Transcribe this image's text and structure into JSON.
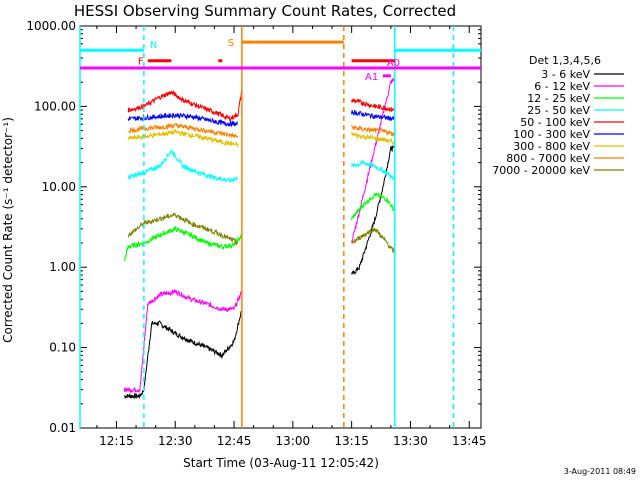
{
  "chart_data": {
    "type": "line",
    "title": "HESSI Observing Summary Count Rates, Corrected",
    "xlabel": "Start Time (03-Aug-11 12:05:42)",
    "ylabel": "Corrected Count Rate (s⁻¹ detector⁻¹)",
    "yscale": "log",
    "ylim": [
      0.01,
      1000
    ],
    "xlim_minutes": [
      "12:05:42",
      "13:48:00"
    ],
    "x_ticks": [
      "12:15",
      "12:30",
      "12:45",
      "13:00",
      "13:15",
      "13:30",
      "13:45"
    ],
    "y_ticks": [
      "1000.00",
      "100.00",
      "10.00",
      "1.00",
      "0.10",
      "0.01"
    ],
    "legend_title": "Det 1,3,4,5,6",
    "legend_position": "right",
    "series": [
      {
        "name": "3 - 6 keV",
        "color": "#000000",
        "segments": [
          {
            "x": [
              "12:17",
              "12:21",
              "12:22",
              "12:24",
              "12:26",
              "12:30",
              "12:34",
              "12:38",
              "12:42",
              "12:45",
              "12:47"
            ],
            "y": [
              0.025,
              0.025,
              0.03,
              0.2,
              0.2,
              0.15,
              0.12,
              0.1,
              0.08,
              0.12,
              0.3
            ]
          },
          {
            "x": [
              "13:15",
              "13:17",
              "13:19",
              "13:21",
              "13:23",
              "13:25",
              "13:26"
            ],
            "y": [
              0.8,
              1.0,
              2.0,
              4.0,
              10,
              30,
              30
            ]
          }
        ]
      },
      {
        "name": "6 - 12 keV",
        "color": "#ff00ff",
        "segments": [
          {
            "x": [
              "12:17",
              "12:21",
              "12:23",
              "12:26",
              "12:30",
              "12:34",
              "12:38",
              "12:42",
              "12:45",
              "12:47"
            ],
            "y": [
              0.03,
              0.03,
              0.35,
              0.45,
              0.5,
              0.4,
              0.35,
              0.3,
              0.3,
              0.5
            ]
          },
          {
            "x": [
              "13:15",
              "13:17",
              "13:20",
              "13:23",
              "13:25",
              "13:26"
            ],
            "y": [
              2.0,
              5,
              20,
              80,
              200,
              220
            ]
          }
        ]
      },
      {
        "name": "12 - 25 keV",
        "color": "#00ff00",
        "segments": [
          {
            "x": [
              "12:17",
              "12:18",
              "12:22",
              "12:26",
              "12:30",
              "12:34",
              "12:38",
              "12:42",
              "12:45",
              "12:47"
            ],
            "y": [
              1.2,
              1.8,
              2.0,
              2.5,
              3.0,
              2.5,
              2.0,
              1.8,
              1.9,
              2.5
            ]
          },
          {
            "x": [
              "13:15",
              "13:18",
              "13:21",
              "13:24",
              "13:26"
            ],
            "y": [
              4,
              6,
              8,
              7,
              5
            ]
          }
        ]
      },
      {
        "name": "25 - 50 keV",
        "color": "#00ffff",
        "segments": [
          {
            "x": [
              "12:18",
              "12:22",
              "12:26",
              "12:29",
              "12:32",
              "12:36",
              "12:40",
              "12:44",
              "12:46"
            ],
            "y": [
              13,
              15,
              18,
              28,
              18,
              15,
              13,
              12,
              13
            ]
          },
          {
            "x": [
              "13:15",
              "13:18",
              "13:21",
              "13:24",
              "13:26"
            ],
            "y": [
              18,
              20,
              18,
              15,
              12
            ]
          }
        ]
      },
      {
        "name": "50 - 100 keV",
        "color": "#ff0000",
        "segments": [
          {
            "x": [
              "12:18",
              "12:22",
              "12:26",
              "12:29",
              "12:32",
              "12:36",
              "12:40",
              "12:44",
              "12:46",
              "12:47"
            ],
            "y": [
              90,
              100,
              130,
              150,
              120,
              100,
              85,
              70,
              80,
              160
            ]
          },
          {
            "x": [
              "13:15",
              "13:18",
              "13:21",
              "13:24",
              "13:26"
            ],
            "y": [
              120,
              110,
              100,
              95,
              90
            ]
          }
        ]
      },
      {
        "name": "100 - 300 keV",
        "color": "#0000ff",
        "segments": [
          {
            "x": [
              "12:18",
              "12:22",
              "12:26",
              "12:30",
              "12:34",
              "12:38",
              "12:42",
              "12:46"
            ],
            "y": [
              70,
              72,
              75,
              78,
              75,
              68,
              62,
              60
            ]
          },
          {
            "x": [
              "13:15",
              "13:18",
              "13:21",
              "13:24",
              "13:26"
            ],
            "y": [
              85,
              80,
              75,
              72,
              70
            ]
          }
        ]
      },
      {
        "name": "300 - 800 keV",
        "color": "#e1c000",
        "segments": [
          {
            "x": [
              "12:18",
              "12:22",
              "12:26",
              "12:30",
              "12:34",
              "12:38",
              "12:42",
              "12:46"
            ],
            "y": [
              40,
              42,
              45,
              48,
              44,
              40,
              36,
              33
            ]
          },
          {
            "x": [
              "13:15",
              "13:18",
              "13:21",
              "13:24",
              "13:26"
            ],
            "y": [
              45,
              42,
              40,
              38,
              35
            ]
          }
        ]
      },
      {
        "name": "800 - 7000 keV",
        "color": "#ff8000",
        "segments": [
          {
            "x": [
              "12:18",
              "12:22",
              "12:26",
              "12:30",
              "12:34",
              "12:38",
              "12:42",
              "12:46"
            ],
            "y": [
              50,
              53,
              55,
              58,
              54,
              50,
              46,
              42
            ]
          },
          {
            "x": [
              "13:15",
              "13:18",
              "13:21",
              "13:24",
              "13:26"
            ],
            "y": [
              55,
              52,
              50,
              48,
              45
            ]
          }
        ]
      },
      {
        "name": "7000 - 20000 keV",
        "color": "#808000",
        "segments": [
          {
            "x": [
              "12:18",
              "12:22",
              "12:26",
              "12:30",
              "12:34",
              "12:38",
              "12:42",
              "12:46"
            ],
            "y": [
              2.5,
              3.5,
              4.0,
              4.5,
              3.5,
              3.0,
              2.5,
              2.0
            ]
          },
          {
            "x": [
              "13:15",
              "13:18",
              "13:21",
              "13:24",
              "13:26"
            ],
            "y": [
              2.0,
              2.5,
              3.0,
              2.0,
              1.5
            ]
          }
        ]
      }
    ],
    "flag_bars": [
      {
        "label": "N",
        "color": "#00ffff",
        "y": 500,
        "segments": [
          [
            "12:05:42",
            "12:22"
          ],
          [
            "13:26",
            "13:48"
          ]
        ]
      },
      {
        "label": "F",
        "color": "#ff0000",
        "y": 370,
        "segments": [
          [
            "12:23",
            "12:29"
          ],
          [
            "12:41",
            "12:42"
          ],
          [
            "13:15",
            "13:26"
          ]
        ]
      },
      {
        "label": "S",
        "color": "#ff8000",
        "y": 630,
        "segments": [
          [
            "12:47",
            "13:13"
          ]
        ]
      },
      {
        "label": "A1",
        "color": "#ff00ff",
        "y": 240,
        "segments": [
          [
            "13:23",
            "13:25"
          ]
        ]
      },
      {
        "label": "A0",
        "color": "#ff00ff",
        "y": 300,
        "segments": [
          [
            "12:05:42",
            "13:48"
          ]
        ]
      }
    ],
    "vertical_markers": [
      {
        "x": "12:05:42",
        "color": "#00ffff",
        "style": "solid"
      },
      {
        "x": "12:22",
        "color": "#00ffff",
        "style": "dashed"
      },
      {
        "x": "12:47",
        "color": "#ff8000",
        "style": "solid"
      },
      {
        "x": "13:13",
        "color": "#ff8000",
        "style": "dashed"
      },
      {
        "x": "13:26",
        "color": "#00ffff",
        "style": "solid"
      },
      {
        "x": "13:41",
        "color": "#00ffff",
        "style": "dashed"
      }
    ]
  },
  "footer": {
    "timestamp": "3-Aug-2011 08:49"
  }
}
